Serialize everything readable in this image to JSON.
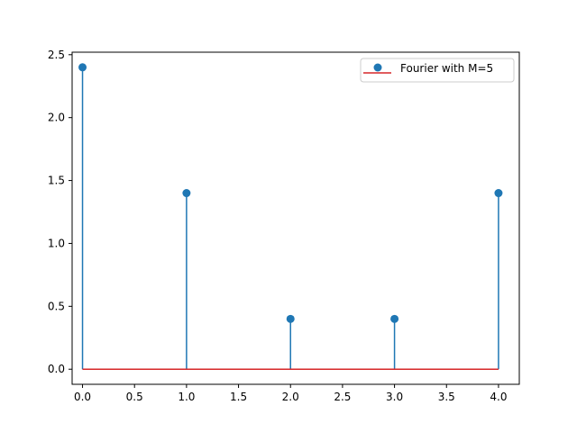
{
  "chart_data": {
    "type": "stem",
    "x": [
      0,
      1,
      2,
      3,
      4
    ],
    "y": [
      2.4,
      1.4,
      0.4,
      0.4,
      1.4
    ],
    "baseline": 0,
    "xlim": [
      -0.1,
      4.2
    ],
    "ylim": [
      -0.12,
      2.52
    ],
    "xticks": [
      "0.0",
      "0.5",
      "1.0",
      "1.5",
      "2.0",
      "2.5",
      "3.0",
      "3.5",
      "4.0"
    ],
    "yticks": [
      "0.0",
      "0.5",
      "1.0",
      "1.5",
      "2.0",
      "2.5"
    ],
    "legend": {
      "location": "top-right",
      "entries": [
        "Fourier with M=5"
      ]
    },
    "grid": false,
    "colors": {
      "stem": "#1f77b4",
      "marker": "#1f77b4",
      "baseline": "#d62728",
      "axes": "#000000"
    }
  }
}
